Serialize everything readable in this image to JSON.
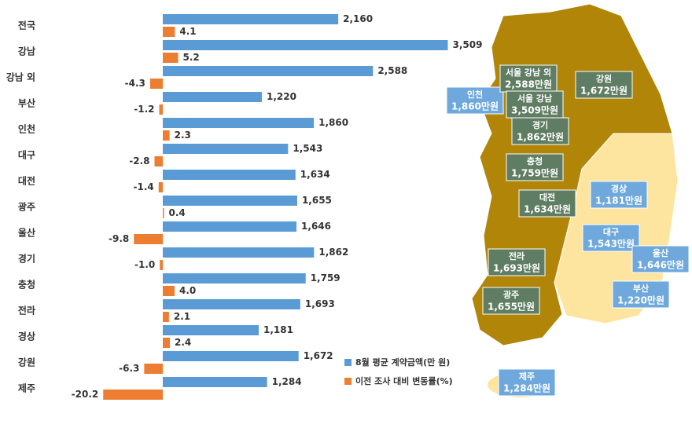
{
  "chart_data": {
    "type": "bar",
    "orientation": "horizontal",
    "categories": [
      "전국",
      "강남",
      "강남 외",
      "부산",
      "인천",
      "대구",
      "대전",
      "광주",
      "울산",
      "경기",
      "충청",
      "전라",
      "경상",
      "강원",
      "제주"
    ],
    "series": [
      {
        "name": "8월 평균 계약금액(만 원)",
        "color": "#5b9bd5",
        "values": [
          2160,
          3509,
          2588,
          1220,
          1860,
          1543,
          1634,
          1655,
          1646,
          1862,
          1759,
          1693,
          1181,
          1672,
          1284
        ],
        "value_labels": [
          "2,160",
          "3,509",
          "2,588",
          "1,220",
          "1,860",
          "1,543",
          "1,634",
          "1,655",
          "1,646",
          "1,862",
          "1,759",
          "1,693",
          "1,181",
          "1,672",
          "1,284"
        ]
      },
      {
        "name": "이전 조사 대비 변동률(%)",
        "color": "#ed7d31",
        "values": [
          4.1,
          5.2,
          -4.3,
          -1.2,
          2.3,
          -2.8,
          -1.4,
          0.4,
          -9.8,
          -1.0,
          4.0,
          2.1,
          2.4,
          -6.3,
          -20.2
        ],
        "value_labels": [
          "4.1",
          "5.2",
          "-4.3",
          "-1.2",
          "2.3",
          "-2.8",
          "-1.4",
          "0.4",
          "-9.8",
          "-1.0",
          "4.0",
          "2.1",
          "2.4",
          "-6.3",
          "-20.2"
        ]
      }
    ]
  },
  "map": {
    "labels": [
      {
        "name": "인천",
        "value": "1,860만원"
      },
      {
        "name": "서울 강남 외",
        "value": "2,588만원"
      },
      {
        "name": "서울 강남",
        "value": "3,509만원"
      },
      {
        "name": "강원",
        "value": "1,672만원"
      },
      {
        "name": "경기",
        "value": "1,862만원"
      },
      {
        "name": "충청",
        "value": "1,759만원"
      },
      {
        "name": "대전",
        "value": "1,634만원"
      },
      {
        "name": "경상",
        "value": "1,181만원"
      },
      {
        "name": "대구",
        "value": "1,543만원"
      },
      {
        "name": "울산",
        "value": "1,646만원"
      },
      {
        "name": "전라",
        "value": "1,693만원"
      },
      {
        "name": "광주",
        "value": "1,655만원"
      },
      {
        "name": "부산",
        "value": "1,220만원"
      },
      {
        "name": "제주",
        "value": "1,284만원"
      }
    ]
  }
}
